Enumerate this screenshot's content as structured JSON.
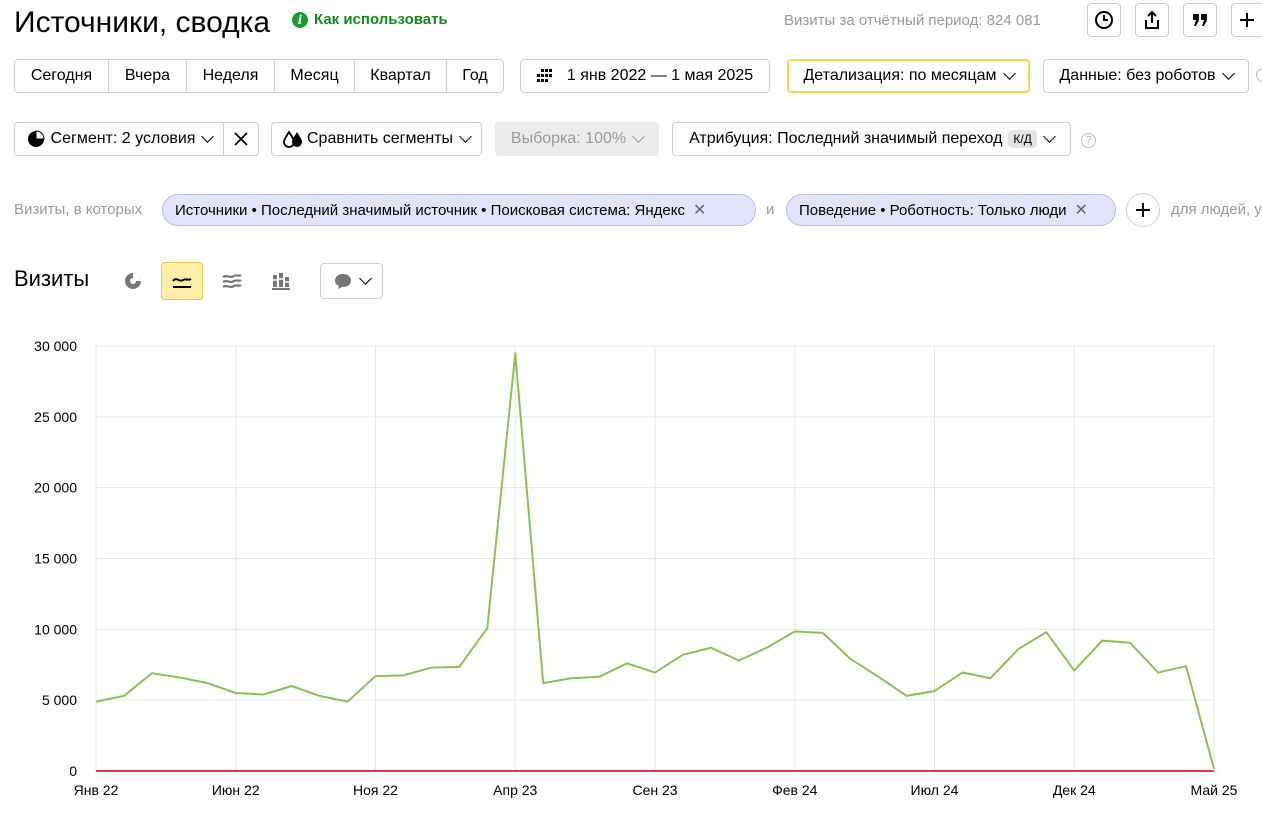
{
  "header": {
    "title": "Источники, сводка",
    "how_to": "Как использовать",
    "visits_total": "Визиты за отчётный период: 824 081"
  },
  "toolbar": {
    "periods": [
      "Сегодня",
      "Вчера",
      "Неделя",
      "Месяц",
      "Квартал",
      "Год"
    ],
    "date_range": "1 янв 2022 — 1 мая 2025",
    "detail": "Детализация: по месяцам",
    "data": "Данные: без роботов"
  },
  "segment_bar": {
    "segment": "Сегмент: 2 условия",
    "compare": "Сравнить сегменты",
    "sample": "Выборка: 100%",
    "attribution": "Атрибуция: Последний значимый переход",
    "attribution_badge": "К/Д",
    "help": "?"
  },
  "filters": {
    "label": "Визиты, в которых",
    "conditions": [
      "Источники • Последний значимый источник • Поисковая система: Яндекс",
      "Поведение • Роботность: Только люди"
    ],
    "joiner": "и",
    "suffix": "для людей, у"
  },
  "chart_header": {
    "title": "Визиты"
  },
  "chart_data": {
    "type": "line",
    "title": "",
    "xlabel": "",
    "ylabel": "",
    "ylim": [
      0,
      30000
    ],
    "yticks": [
      0,
      5000,
      10000,
      15000,
      20000,
      25000,
      30000
    ],
    "ytick_labels": [
      "0",
      "5 000",
      "10 000",
      "15 000",
      "20 000",
      "25 000",
      "30 000"
    ],
    "xtick_labels": [
      "Янв 22",
      "Июн 22",
      "Ноя 22",
      "Апр 23",
      "Сен 23",
      "Фев 24",
      "Июл 24",
      "Дек 24",
      "Май 25"
    ],
    "xtick_index": [
      0,
      5,
      10,
      15,
      20,
      25,
      30,
      35,
      40
    ],
    "grid": true,
    "series": [
      {
        "color": "#8cc152",
        "x": [
          "2022-01",
          "2022-02",
          "2022-03",
          "2022-04",
          "2022-05",
          "2022-06",
          "2022-07",
          "2022-08",
          "2022-09",
          "2022-10",
          "2022-11",
          "2022-12",
          "2023-01",
          "2023-02",
          "2023-03",
          "2023-04",
          "2023-05",
          "2023-06",
          "2023-07",
          "2023-08",
          "2023-09",
          "2023-10",
          "2023-11",
          "2023-12",
          "2024-01",
          "2024-02",
          "2024-03",
          "2024-04",
          "2024-05",
          "2024-06",
          "2024-07",
          "2024-08",
          "2024-09",
          "2024-10",
          "2024-11",
          "2024-12",
          "2025-01",
          "2025-02",
          "2025-03",
          "2025-04",
          "2025-05"
        ],
        "values": [
          4900,
          5300,
          6900,
          6600,
          6200,
          5500,
          5400,
          6000,
          5300,
          4900,
          6700,
          6750,
          7300,
          7350,
          10100,
          29500,
          6200,
          6550,
          6650,
          7600,
          6950,
          8200,
          8700,
          7800,
          8700,
          9850,
          9750,
          7900,
          6650,
          5300,
          5650,
          6950,
          6550,
          8600,
          9800,
          7100,
          9200,
          9050,
          6950,
          7400,
          150
        ]
      },
      {
        "color": "#e0393e",
        "x": [
          "2022-01",
          "2025-05"
        ],
        "values": [
          0,
          0
        ]
      }
    ]
  },
  "icons": {
    "clock": "clock-icon",
    "export": "export-icon",
    "quote": "annotation-icon",
    "add": "plus-icon"
  }
}
